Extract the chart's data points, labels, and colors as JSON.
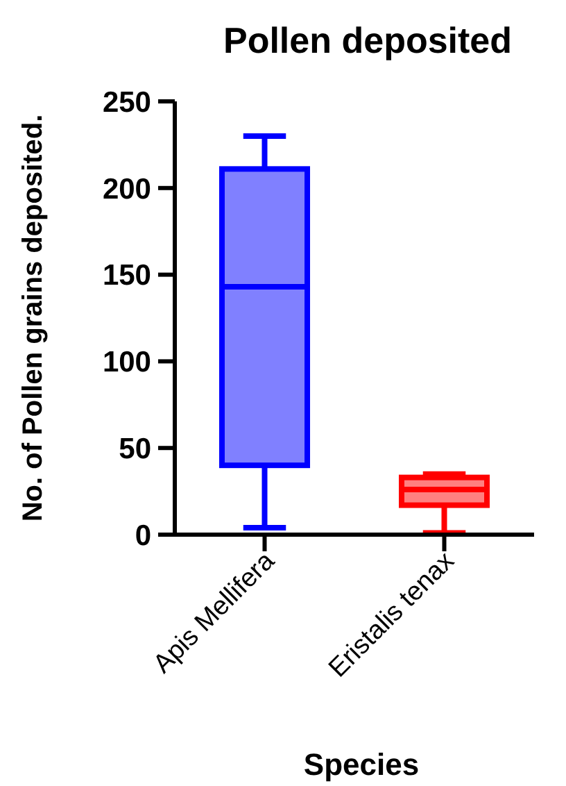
{
  "chart_data": {
    "type": "box",
    "title": "Pollen deposited",
    "xlabel": "Species",
    "ylabel": "No. of Pollen grains deposited.",
    "categories": [
      "Apis Mellifera",
      "Eristalis tenax"
    ],
    "ylim": [
      0,
      250
    ],
    "yticks": [
      0,
      50,
      100,
      150,
      200,
      250
    ],
    "grid": false,
    "series": [
      {
        "colors": [
          "#0000ff",
          "#ff0000"
        ],
        "boxes": [
          {
            "low": 4,
            "q1": 40,
            "median": 143,
            "q3": 211,
            "high": 230
          },
          {
            "low": 1,
            "q1": 17,
            "median": 26,
            "q3": 33,
            "high": 35
          }
        ]
      }
    ]
  }
}
